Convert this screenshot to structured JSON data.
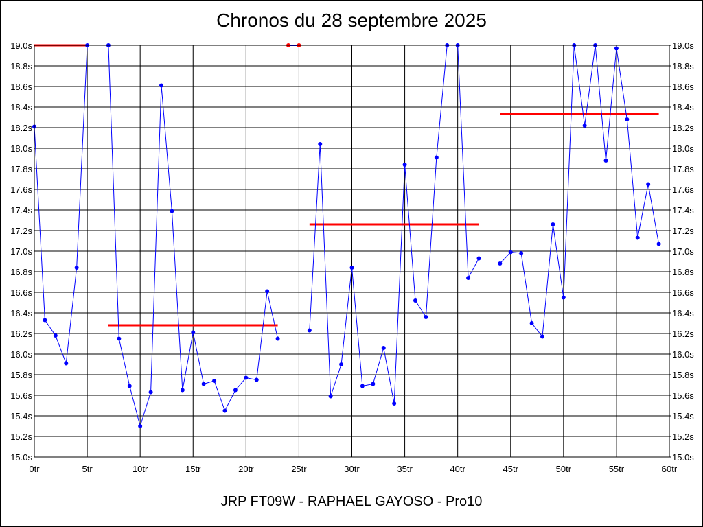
{
  "title": "Chronos du 28 septembre 2025",
  "footer": "JRP FT09W - RAPHAEL GAYOSO - Pro10",
  "colors": {
    "series": "#0000ff",
    "average": "#ff0000",
    "grid": "#000000",
    "missed_point": "#ff0000"
  },
  "chart_data": {
    "type": "line",
    "title": "Chronos du 28 septembre 2025",
    "xlim": [
      0,
      60
    ],
    "ylim": [
      15.0,
      19.0
    ],
    "grid": true,
    "x_tick_values": [
      0,
      5,
      10,
      15,
      20,
      25,
      30,
      35,
      40,
      45,
      50,
      55,
      60
    ],
    "x_tick_labels": [
      "0tr",
      "5tr",
      "10tr",
      "15tr",
      "20tr",
      "25tr",
      "30tr",
      "35tr",
      "40tr",
      "45tr",
      "50tr",
      "55tr",
      "60tr"
    ],
    "y_tick_values": [
      15.0,
      15.2,
      15.4,
      15.6,
      15.8,
      16.0,
      16.2,
      16.4,
      16.6,
      16.8,
      17.0,
      17.2,
      17.4,
      17.6,
      17.8,
      18.0,
      18.2,
      18.4,
      18.6,
      18.8,
      19.0
    ],
    "y_tick_labels": [
      "15.0s",
      "15.2s",
      "15.4s",
      "15.6s",
      "15.8s",
      "16.0s",
      "16.2s",
      "16.4s",
      "16.6s",
      "16.8s",
      "17.0s",
      "17.2s",
      "17.4s",
      "17.6s",
      "17.8s",
      "18.0s",
      "18.2s",
      "18.4s",
      "18.6s",
      "18.8s",
      "19.0s"
    ],
    "segments": [
      [
        [
          0,
          18.21
        ],
        [
          1,
          16.33
        ],
        [
          2,
          16.18
        ],
        [
          3,
          15.91
        ],
        [
          4,
          16.84
        ],
        [
          5,
          19.0
        ]
      ],
      [
        [
          7,
          19.0
        ],
        [
          8,
          16.15
        ],
        [
          9,
          15.69
        ],
        [
          10,
          15.3
        ],
        [
          11,
          15.63
        ],
        [
          12,
          18.61
        ],
        [
          13,
          17.39
        ],
        [
          14,
          15.65
        ],
        [
          15,
          16.21
        ],
        [
          16,
          15.71
        ],
        [
          17,
          15.74
        ],
        [
          18,
          15.45
        ],
        [
          19,
          15.65
        ],
        [
          20,
          15.77
        ],
        [
          21,
          15.75
        ],
        [
          22,
          16.61
        ],
        [
          23,
          16.15
        ]
      ],
      [
        [
          26,
          16.23
        ],
        [
          27,
          18.04
        ],
        [
          28,
          15.59
        ],
        [
          29,
          15.9
        ],
        [
          30,
          16.84
        ],
        [
          31,
          15.69
        ],
        [
          32,
          15.71
        ],
        [
          33,
          16.06
        ],
        [
          34,
          15.52
        ],
        [
          35,
          17.84
        ],
        [
          36,
          16.52
        ],
        [
          37,
          16.36
        ],
        [
          38,
          17.91
        ],
        [
          39,
          19.0
        ],
        [
          40,
          19.0
        ],
        [
          41,
          16.74
        ],
        [
          42,
          16.93
        ]
      ],
      [
        [
          44,
          16.88
        ],
        [
          45,
          16.99
        ],
        [
          46,
          16.98
        ],
        [
          47,
          16.3
        ],
        [
          48,
          16.17
        ],
        [
          49,
          17.26
        ],
        [
          50,
          16.55
        ],
        [
          51,
          19.0
        ],
        [
          52,
          18.22
        ],
        [
          53,
          19.0
        ],
        [
          54,
          17.88
        ],
        [
          55,
          18.97
        ],
        [
          56,
          18.28
        ],
        [
          57,
          17.13
        ],
        [
          58,
          17.65
        ],
        [
          59,
          17.07
        ]
      ]
    ],
    "missed_segment": [
      [
        24,
        19.0
      ],
      [
        25,
        19.0
      ]
    ],
    "averages": [
      {
        "x0": 0,
        "x1": 5,
        "y": 19.0
      },
      {
        "x0": 7,
        "x1": 23,
        "y": 16.28
      },
      {
        "x0": 26,
        "x1": 42,
        "y": 17.26
      },
      {
        "x0": 44,
        "x1": 59,
        "y": 18.33
      }
    ]
  }
}
